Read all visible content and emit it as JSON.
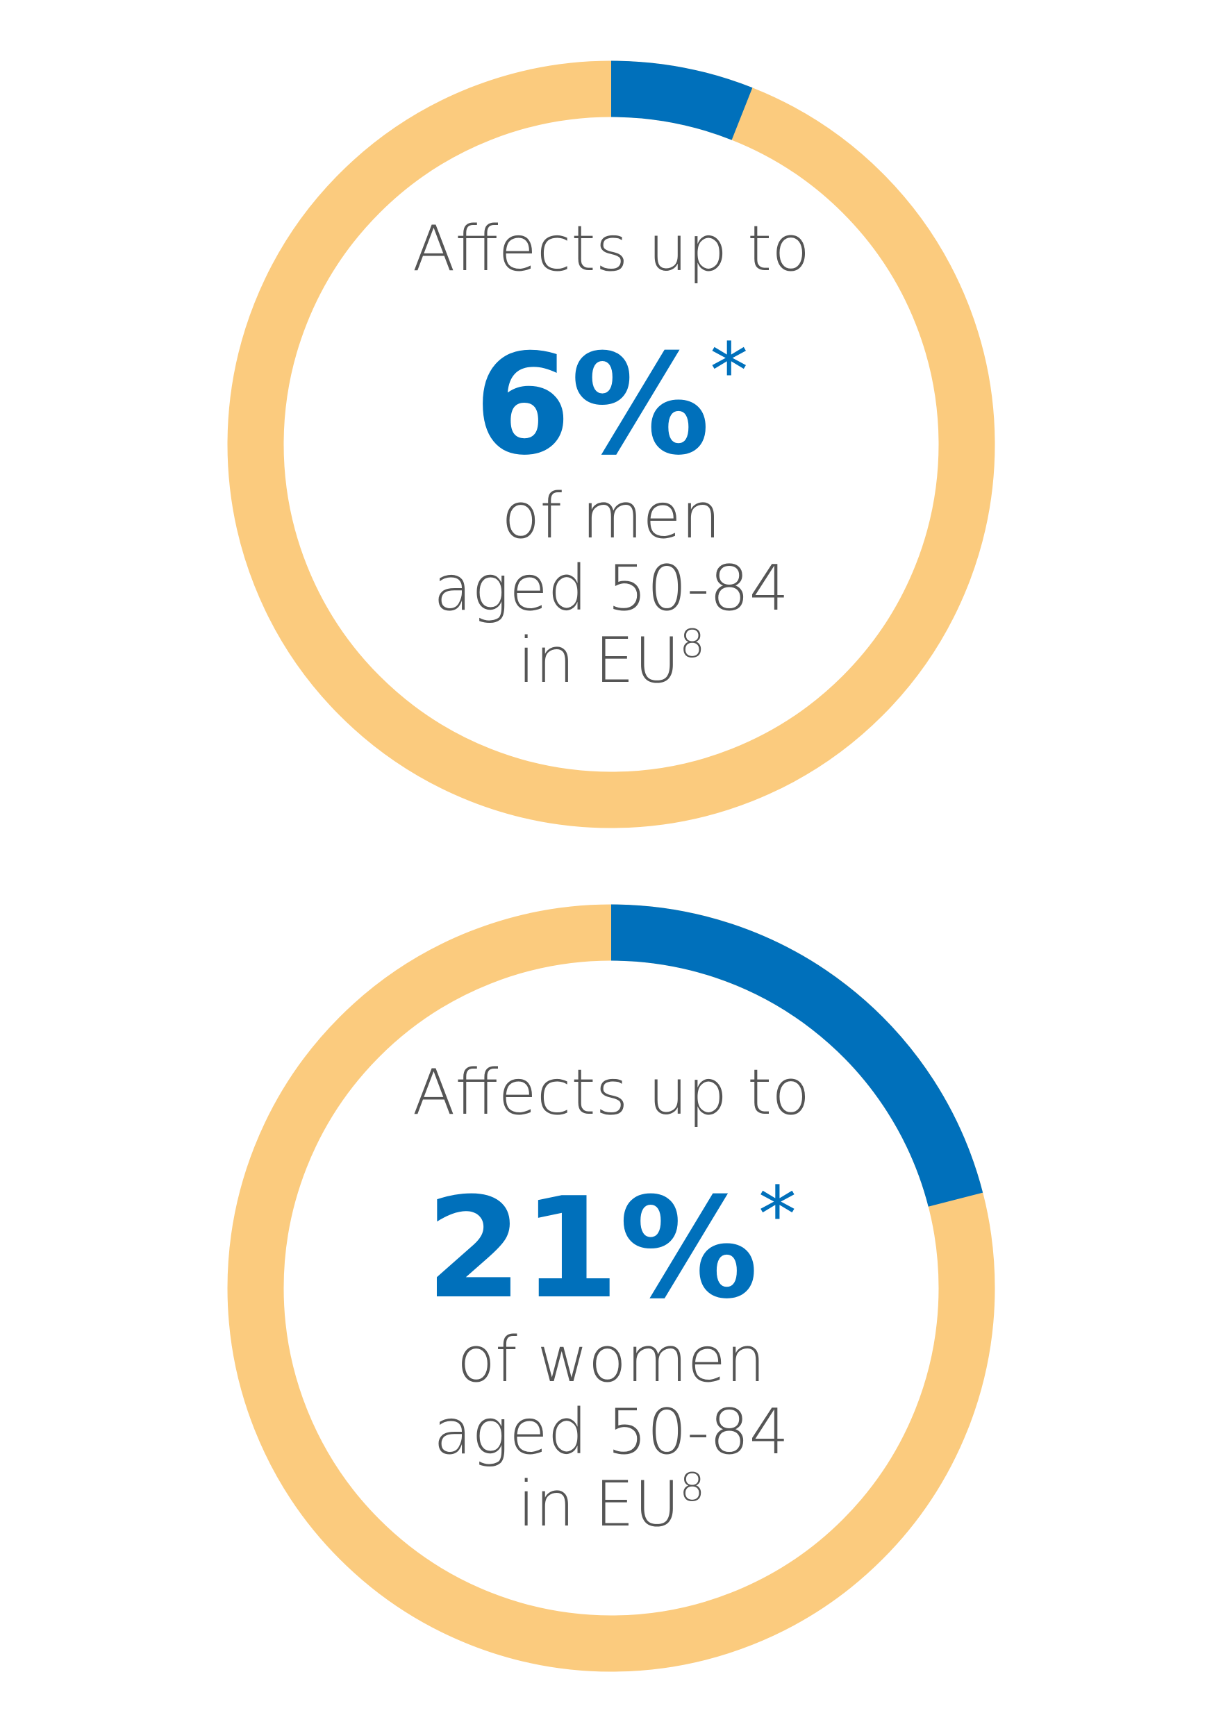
{
  "chart_data": [
    {
      "type": "donut",
      "text_above": "Affects up to",
      "values": [
        6
      ],
      "value_labels": [
        "6%"
      ],
      "note_mark": "*",
      "text_below": [
        "of men",
        "aged 50-84",
        "in EU"
      ],
      "footnote": "8",
      "ylim": [
        0,
        100
      ],
      "color": "#0070bb",
      "track_color": "#fbcb7e"
    },
    {
      "type": "donut",
      "text_above": "Affects up to",
      "values": [
        21
      ],
      "value_labels": [
        "21%"
      ],
      "note_mark": "*",
      "text_below": [
        "of women",
        "aged 50-84",
        "in EU"
      ],
      "footnote": "8",
      "ylim": [
        0,
        100
      ],
      "color": "#0070bb",
      "track_color": "#fbcb7e"
    }
  ]
}
